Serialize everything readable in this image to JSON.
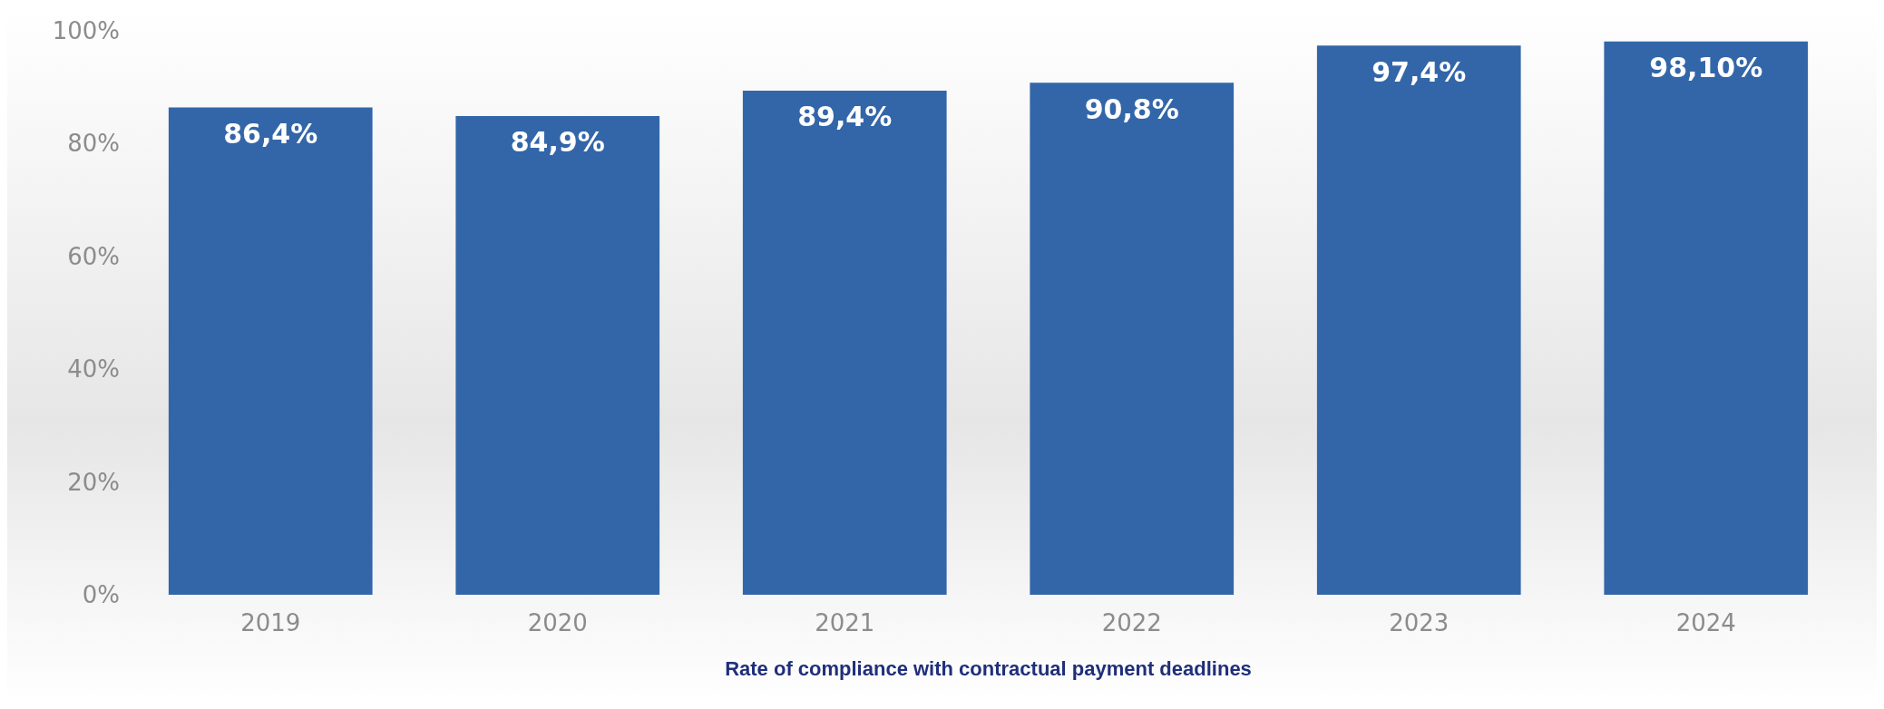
{
  "chart_data": {
    "type": "bar",
    "xlabel": "Rate of compliance with contractual payment deadlines",
    "categories": [
      "2019",
      "2020",
      "2021",
      "2022",
      "2023",
      "2024"
    ],
    "values": [
      86.4,
      84.9,
      89.4,
      90.8,
      97.4,
      98.1
    ],
    "value_labels": [
      "86,4%",
      "84,9%",
      "89,4%",
      "90,8%",
      "97,4%",
      "98,10%"
    ],
    "color": "#3366a9",
    "ylim": [
      0,
      100
    ],
    "yticks": [
      {
        "value": 0,
        "label": "0%"
      },
      {
        "value": 20,
        "label": "20%"
      },
      {
        "value": 40,
        "label": "40%"
      },
      {
        "value": 60,
        "label": "60%"
      },
      {
        "value": 80,
        "label": "80%"
      },
      {
        "value": 100,
        "label": "100%"
      }
    ],
    "grid": false
  }
}
